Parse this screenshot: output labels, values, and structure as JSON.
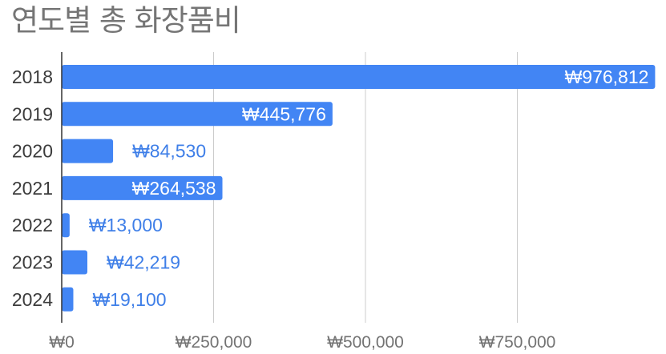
{
  "chart_data": {
    "type": "bar",
    "orientation": "horizontal",
    "title": "연도별 총 화장품비",
    "xlabel": "",
    "ylabel": "",
    "categories": [
      "2018",
      "2019",
      "2020",
      "2021",
      "2022",
      "2023",
      "2024"
    ],
    "values": [
      976812,
      445776,
      84530,
      264538,
      13000,
      42219,
      19100
    ],
    "data_labels": [
      "₩976,812",
      "₩445,776",
      "₩84,530",
      "₩264,538",
      "₩13,000",
      "₩42,219",
      "₩19,100"
    ],
    "x_ticks": [
      0,
      250000,
      500000,
      750000
    ],
    "x_tick_labels": [
      "₩0",
      "₩250,000",
      "₩500,000",
      "₩750,000"
    ],
    "xlim": [
      0,
      1000000
    ],
    "grid": true,
    "legend": "none",
    "colors": {
      "bar": "#4285f4",
      "label_inside": "#ffffff",
      "label_outside": "#3f7fe8",
      "grid": "#cccccc",
      "axis": "#333333",
      "title": "#757575"
    }
  }
}
